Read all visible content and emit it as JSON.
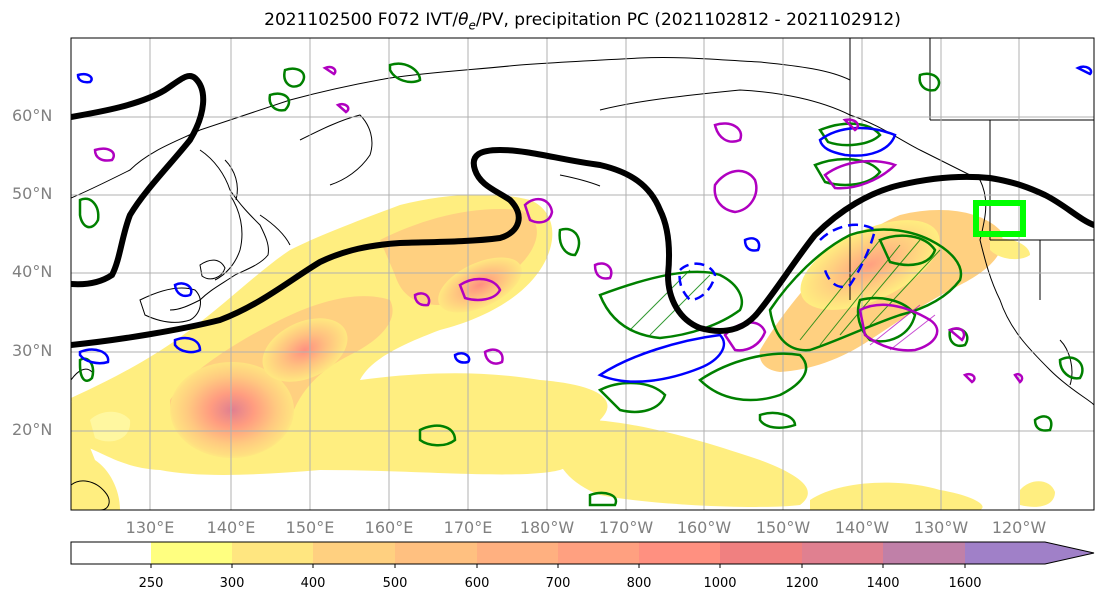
{
  "title": "2021102500 F072 IVT/θe/PV, precipitation PC (2021102812 - 2021102912)",
  "title_parts": {
    "prefix": "2021102500 F072 IVT/",
    "theta": "θ",
    "theta_sub": "e",
    "suffix": "/PV, precipitation PC (2021102812 - 2021102912)"
  },
  "lat_labels": [
    "60°N",
    "50°N",
    "40°N",
    "30°N",
    "20°N"
  ],
  "lon_labels": [
    "130°E",
    "140°E",
    "150°E",
    "160°E",
    "170°E",
    "180°W",
    "170°W",
    "160°W",
    "150°W",
    "140°W",
    "130°W",
    "120°W"
  ],
  "colorbar": {
    "levels": [
      "250",
      "300",
      "400",
      "500",
      "600",
      "700",
      "800",
      "1000",
      "1200",
      "1400",
      "1600"
    ],
    "colors": [
      "#ffff80",
      "#ffe680",
      "#ffd080",
      "#ffc080",
      "#ffb080",
      "#ffa080",
      "#ff9080",
      "#f08080",
      "#e08090",
      "#c080a8",
      "#a080c8"
    ]
  },
  "colors": {
    "jet": "#000000",
    "theta_e": "#008000",
    "pv": "#0000ff",
    "precip_pc": "#b000c0",
    "target_box": "#00ff00",
    "grid": "#b0b0b0",
    "coast": "#000000"
  }
}
